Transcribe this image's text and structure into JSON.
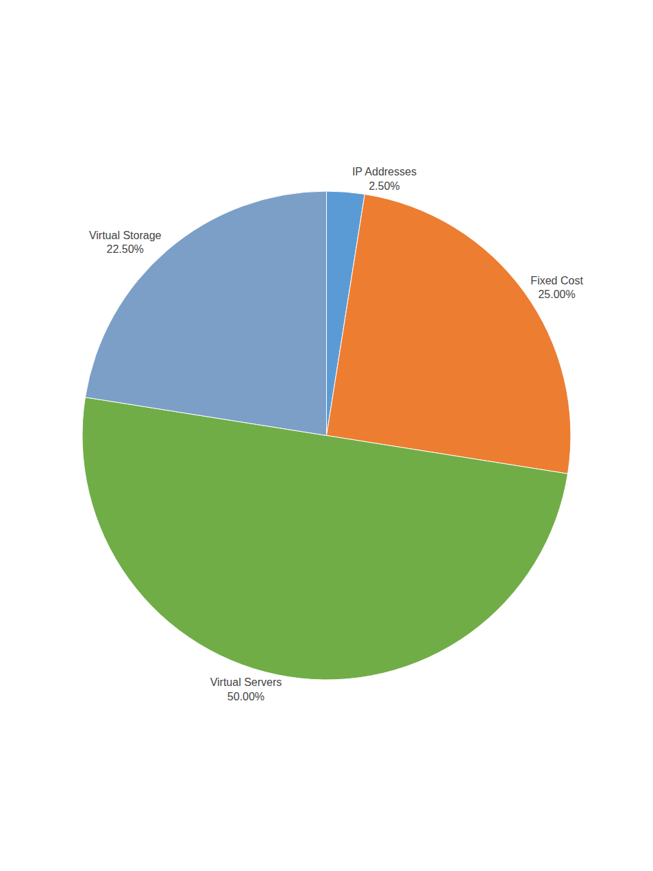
{
  "chart_data": {
    "type": "pie",
    "categories": [
      "IP Addresses",
      "Fixed Cost",
      "Virtual Servers",
      "Virtual Storage"
    ],
    "values": [
      2.5,
      25.0,
      50.0,
      22.5
    ],
    "value_labels": [
      "2.50%",
      "25.00%",
      "50.00%",
      "22.50%"
    ],
    "colors": [
      "#5b9bd5",
      "#ed7d31",
      "#70ad47",
      "#7b9fc7"
    ],
    "data_labels": true
  }
}
